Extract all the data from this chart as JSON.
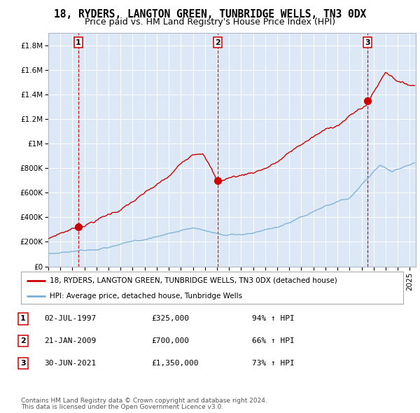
{
  "title": "18, RYDERS, LANGTON GREEN, TUNBRIDGE WELLS, TN3 0DX",
  "subtitle": "Price paid vs. HM Land Registry's House Price Index (HPI)",
  "ylabel_ticks": [
    "£0",
    "£200K",
    "£400K",
    "£600K",
    "£800K",
    "£1M",
    "£1.2M",
    "£1.4M",
    "£1.6M",
    "£1.8M"
  ],
  "ylabel_values": [
    0,
    200000,
    400000,
    600000,
    800000,
    1000000,
    1200000,
    1400000,
    1600000,
    1800000
  ],
  "ylim": [
    0,
    1900000
  ],
  "xlim_start": 1995.0,
  "xlim_end": 2025.5,
  "plot_bg_color": "#dce8f5",
  "grid_color": "#ffffff",
  "property_line_color": "#cc0000",
  "hpi_line_color": "#7aaed6",
  "sale_marker_color": "#cc0000",
  "sale_marker_size": 7,
  "sale_points": [
    {
      "year": 1997.5,
      "value": 325000,
      "label": "1"
    },
    {
      "year": 2009.05,
      "value": 700000,
      "label": "2"
    },
    {
      "year": 2021.5,
      "value": 1350000,
      "label": "3"
    }
  ],
  "dashed_line_color": "#cc0000",
  "legend_property": "18, RYDERS, LANGTON GREEN, TUNBRIDGE WELLS, TN3 0DX (detached house)",
  "legend_hpi": "HPI: Average price, detached house, Tunbridge Wells",
  "table_rows": [
    {
      "num": "1",
      "date": "02-JUL-1997",
      "price": "£325,000",
      "pct": "94% ↑ HPI"
    },
    {
      "num": "2",
      "date": "21-JAN-2009",
      "price": "£700,000",
      "pct": "66% ↑ HPI"
    },
    {
      "num": "3",
      "date": "30-JUN-2021",
      "price": "£1,350,000",
      "pct": "73% ↑ HPI"
    }
  ],
  "footnote1": "Contains HM Land Registry data © Crown copyright and database right 2024.",
  "footnote2": "This data is licensed under the Open Government Licence v3.0.",
  "title_fontsize": 10.5,
  "subtitle_fontsize": 9,
  "tick_fontsize": 7.5,
  "legend_fontsize": 7.5,
  "table_fontsize": 8,
  "footnote_fontsize": 6.5
}
